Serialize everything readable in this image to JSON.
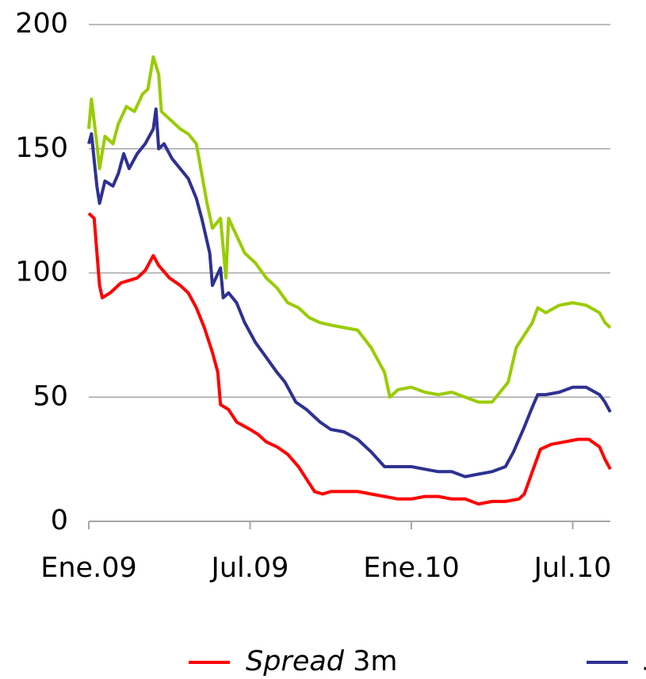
{
  "chart_data": {
    "type": "line",
    "xlim": [
      0,
      19.4
    ],
    "xticks": [
      {
        "value": 0,
        "label": "Ene.09"
      },
      {
        "value": 6,
        "label": "Jul.09"
      },
      {
        "value": 12,
        "label": "Ene.10"
      },
      {
        "value": 18,
        "label": "Jul.10"
      }
    ],
    "ylim": [
      0,
      200
    ],
    "yticks": [
      0,
      50,
      100,
      150,
      200
    ],
    "grid": true,
    "legend": "bottom",
    "series": [
      {
        "name": "Spread 3m",
        "color": "#ff0000",
        "x": [
          0,
          0.2,
          0.4,
          0.5,
          0.8,
          1.2,
          1.5,
          1.8,
          2.1,
          2.4,
          2.6,
          3.0,
          3.4,
          3.7,
          4.0,
          4.3,
          4.6,
          4.8,
          4.9,
          5.2,
          5.5,
          6.0,
          6.3,
          6.6,
          7.0,
          7.4,
          7.8,
          8.1,
          8.4,
          8.7,
          9.0,
          9.5,
          10.0,
          10.5,
          11.0,
          11.5,
          12.0,
          12.5,
          13.0,
          13.5,
          14.0,
          14.5,
          15.0,
          15.5,
          16.0,
          16.2,
          16.5,
          16.8,
          17.2,
          17.7,
          18.2,
          18.6,
          19.0,
          19.2,
          19.4
        ],
        "values": [
          124,
          122,
          95,
          90,
          92,
          96,
          97,
          98,
          101,
          107,
          103,
          98,
          95,
          92,
          86,
          78,
          68,
          60,
          47,
          45,
          40,
          37,
          35,
          32,
          30,
          27,
          22,
          17,
          12,
          11,
          12,
          12,
          12,
          11,
          10,
          9,
          9,
          10,
          10,
          9,
          9,
          7,
          8,
          8,
          9,
          11,
          20,
          29,
          31,
          32,
          33,
          33,
          30,
          25,
          21
        ]
      },
      {
        "name": "S",
        "color": "#2e3192",
        "x": [
          0,
          0.1,
          0.3,
          0.4,
          0.6,
          0.9,
          1.1,
          1.3,
          1.5,
          1.8,
          2.1,
          2.4,
          2.5,
          2.6,
          2.8,
          3.1,
          3.4,
          3.7,
          4.0,
          4.2,
          4.5,
          4.6,
          4.9,
          5.0,
          5.2,
          5.5,
          5.8,
          6.2,
          6.6,
          7.0,
          7.3,
          7.7,
          8.1,
          8.6,
          9.0,
          9.5,
          10.0,
          10.5,
          11.0,
          11.5,
          12.0,
          12.5,
          13.0,
          13.5,
          14.0,
          14.5,
          15.0,
          15.5,
          15.8,
          16.2,
          16.5,
          16.7,
          17.0,
          17.5,
          18.0,
          18.5,
          19.0,
          19.2,
          19.4
        ],
        "values": [
          152,
          156,
          135,
          128,
          137,
          135,
          140,
          148,
          142,
          148,
          152,
          158,
          166,
          150,
          152,
          146,
          142,
          138,
          130,
          122,
          108,
          95,
          102,
          90,
          92,
          88,
          80,
          72,
          66,
          60,
          56,
          48,
          45,
          40,
          37,
          36,
          33,
          28,
          22,
          22,
          22,
          21,
          20,
          20,
          18,
          19,
          20,
          22,
          28,
          38,
          46,
          51,
          51,
          52,
          54,
          54,
          51,
          48,
          44
        ]
      },
      {
        "color": "#99cc00",
        "x": [
          0,
          0.1,
          0.3,
          0.4,
          0.6,
          0.9,
          1.1,
          1.4,
          1.7,
          2.0,
          2.2,
          2.4,
          2.6,
          2.7,
          3.0,
          3.4,
          3.7,
          4.0,
          4.2,
          4.4,
          4.6,
          4.9,
          5.1,
          5.2,
          5.5,
          5.8,
          6.2,
          6.6,
          7.0,
          7.4,
          7.8,
          8.2,
          8.6,
          9.0,
          9.5,
          10.0,
          10.5,
          11.0,
          11.2,
          11.5,
          12.0,
          12.5,
          13.0,
          13.5,
          14.0,
          14.5,
          15.0,
          15.3,
          15.6,
          15.9,
          16.2,
          16.5,
          16.7,
          17.0,
          17.5,
          18.0,
          18.5,
          19.0,
          19.2,
          19.4
        ],
        "values": [
          158,
          170,
          152,
          142,
          155,
          152,
          160,
          167,
          165,
          172,
          174,
          187,
          180,
          165,
          162,
          158,
          156,
          152,
          140,
          128,
          118,
          122,
          98,
          122,
          115,
          108,
          104,
          98,
          94,
          88,
          86,
          82,
          80,
          79,
          78,
          77,
          70,
          60,
          50,
          53,
          54,
          52,
          51,
          52,
          50,
          48,
          48,
          52,
          56,
          70,
          75,
          80,
          86,
          84,
          87,
          88,
          87,
          84,
          80,
          78
        ]
      }
    ]
  }
}
